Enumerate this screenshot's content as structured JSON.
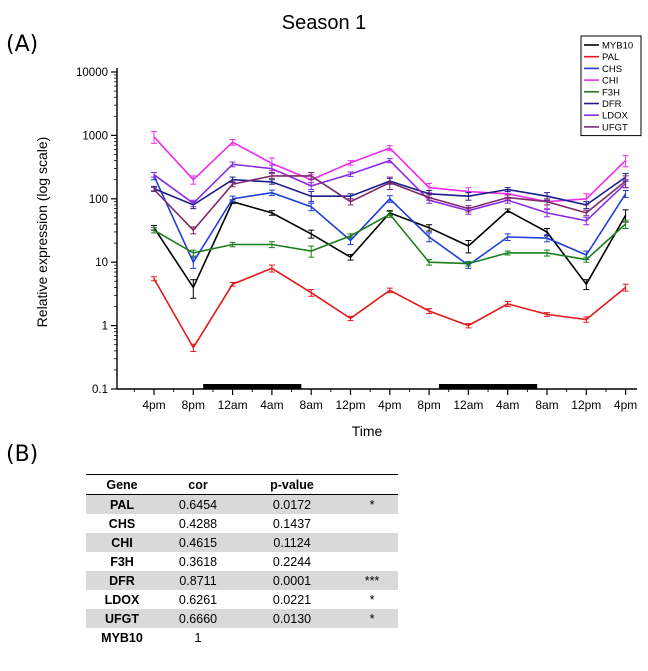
{
  "panels": {
    "a": "(A)",
    "b": "(B)"
  },
  "chart_data": {
    "type": "line",
    "title": "Season 1",
    "xlabel": "Time",
    "ylabel": "Relative expression (log scale)",
    "yscale": "log",
    "ylim": [
      0.1,
      10000
    ],
    "yticks": [
      "0.1",
      "1",
      "10",
      "100",
      "1000",
      "10000"
    ],
    "categories": [
      "4pm",
      "8pm",
      "12am",
      "4am",
      "8am",
      "12pm",
      "4pm",
      "8pm",
      "12am",
      "4am",
      "8am",
      "12pm",
      "4pm"
    ],
    "dark_periods": [
      [
        1.25,
        3.75
      ],
      [
        7.25,
        9.75
      ]
    ],
    "grid": false,
    "legend_position": "top-right",
    "series": [
      {
        "name": "MYB10",
        "color": "#000000",
        "values": [
          35,
          4,
          90,
          60,
          28,
          12,
          60,
          35,
          18,
          65,
          30,
          4.5,
          55
        ],
        "errors": [
          3,
          1.3,
          6,
          5,
          4,
          1.2,
          5,
          4,
          4,
          4,
          4,
          0.8,
          12
        ]
      },
      {
        "name": "PAL",
        "color": "#e31a1c",
        "values": [
          5.5,
          0.45,
          4.5,
          8,
          3.3,
          1.3,
          3.6,
          1.7,
          1.0,
          2.2,
          1.5,
          1.25,
          4.0
        ],
        "errors": [
          0.4,
          0.06,
          0.3,
          1,
          0.4,
          0.1,
          0.3,
          0.15,
          0.08,
          0.2,
          0.1,
          0.12,
          0.5
        ]
      },
      {
        "name": "CHS",
        "color": "#1f3fd6",
        "values": [
          230,
          10,
          100,
          125,
          75,
          22,
          100,
          25,
          9,
          25,
          24,
          13,
          120
        ],
        "errors": [
          30,
          2,
          10,
          12,
          10,
          3,
          12,
          4,
          1,
          3,
          3,
          2,
          15
        ]
      },
      {
        "name": "CHI",
        "color": "#ee2ee8",
        "values": [
          950,
          200,
          780,
          360,
          200,
          370,
          630,
          150,
          130,
          120,
          90,
          100,
          400
        ],
        "errors": [
          200,
          30,
          80,
          80,
          40,
          30,
          60,
          25,
          20,
          20,
          20,
          20,
          80
        ]
      },
      {
        "name": "F3H",
        "color": "#1a7f1a",
        "values": [
          32,
          14,
          19,
          19,
          15,
          26,
          57,
          10,
          9.5,
          14,
          14,
          11,
          40
        ],
        "errors": [
          3,
          1.5,
          1.5,
          2,
          3,
          2,
          6,
          1,
          0.8,
          1,
          1.5,
          1,
          6
        ]
      },
      {
        "name": "DFR",
        "color": "#1c1c8c",
        "values": [
          145,
          80,
          200,
          185,
          110,
          110,
          190,
          120,
          110,
          140,
          110,
          80,
          220
        ],
        "errors": [
          12,
          10,
          20,
          15,
          20,
          10,
          20,
          15,
          15,
          10,
          15,
          10,
          30
        ]
      },
      {
        "name": "LDOX",
        "color": "#8a2be2",
        "values": [
          240,
          85,
          350,
          300,
          160,
          245,
          400,
          95,
          65,
          95,
          60,
          45,
          175
        ],
        "errors": [
          20,
          10,
          30,
          40,
          20,
          20,
          30,
          10,
          8,
          10,
          8,
          6,
          25
        ]
      },
      {
        "name": "UFGT",
        "color": "#7b2a6b",
        "values": [
          140,
          32,
          170,
          230,
          230,
          90,
          180,
          105,
          70,
          105,
          90,
          60,
          190
        ],
        "errors": [
          10,
          4,
          15,
          20,
          30,
          10,
          40,
          10,
          8,
          10,
          10,
          6,
          40
        ]
      }
    ]
  },
  "table": {
    "headers": [
      "Gene",
      "cor",
      "p-value",
      ""
    ],
    "rows": [
      {
        "gene": "PAL",
        "cor": "0.6454",
        "p": "0.0172",
        "sig": "*"
      },
      {
        "gene": "CHS",
        "cor": "0.4288",
        "p": "0.1437",
        "sig": ""
      },
      {
        "gene": "CHI",
        "cor": "0.4615",
        "p": "0.1124",
        "sig": ""
      },
      {
        "gene": "F3H",
        "cor": "0.3618",
        "p": "0.2244",
        "sig": ""
      },
      {
        "gene": "DFR",
        "cor": "0.8711",
        "p": "0.0001",
        "sig": "***"
      },
      {
        "gene": "LDOX",
        "cor": "0.6261",
        "p": "0.0221",
        "sig": "*"
      },
      {
        "gene": "UFGT",
        "cor": "0.6660",
        "p": "0.0130",
        "sig": "*"
      },
      {
        "gene": "MYB10",
        "cor": "1",
        "p": "",
        "sig": ""
      }
    ]
  }
}
